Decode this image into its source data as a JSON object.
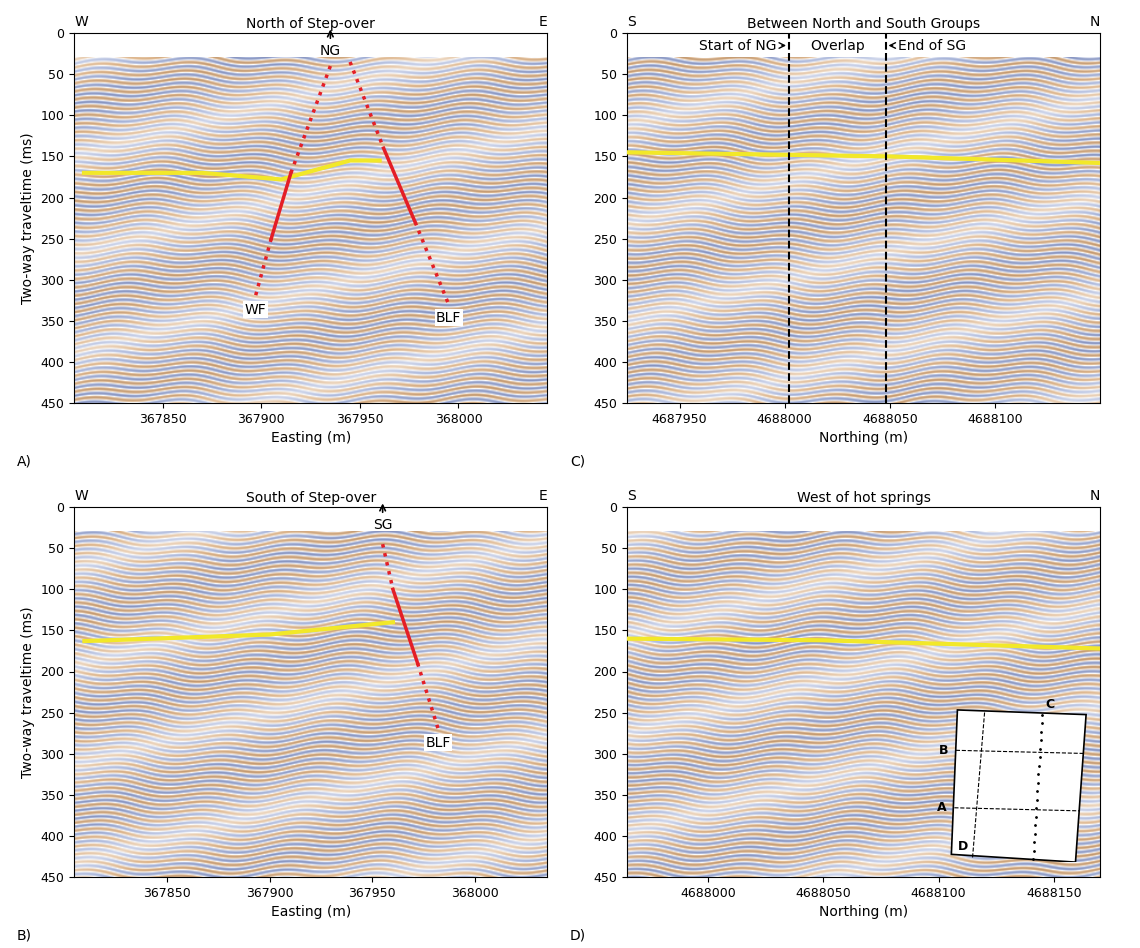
{
  "chart_data": [
    {
      "type": "line",
      "panel": "A)",
      "title": "North of Step-over",
      "left_dir": "W",
      "right_dir": "E",
      "xlabel": "Easting (m)",
      "ylabel": "Two-way traveltime (ms)",
      "xlim": [
        367805,
        368045
      ],
      "xticks": [
        367850,
        367900,
        367950,
        368000
      ],
      "ylim": [
        450,
        0
      ],
      "yticks": [
        0,
        50,
        100,
        150,
        200,
        250,
        300,
        350,
        400,
        450
      ],
      "top_label": {
        "text": "NG",
        "x": 367935
      },
      "horizon": {
        "color": "#f2e829",
        "x": [
          367810,
          367870,
          367910,
          367945,
          367960
        ],
        "y": [
          170,
          170,
          178,
          155,
          155
        ]
      },
      "faults": [
        {
          "label": "WF",
          "color": "#e41e26",
          "segments": [
            {
              "line_style": "dotted",
              "x": [
                367935,
                367915
              ],
              "y": [
                40,
                170
              ]
            },
            {
              "line_style": "solid",
              "x": [
                367915,
                367905
              ],
              "y": [
                170,
                250
              ]
            },
            {
              "line_style": "dotted",
              "x": [
                367905,
                367897
              ],
              "y": [
                250,
                320
              ]
            }
          ]
        },
        {
          "label": "BLF",
          "color": "#e41e26",
          "segments": [
            {
              "line_style": "dotted",
              "x": [
                367945,
                367962
              ],
              "y": [
                35,
                140
              ]
            },
            {
              "line_style": "solid",
              "x": [
                367962,
                367978
              ],
              "y": [
                140,
                230
              ]
            },
            {
              "line_style": "dotted",
              "x": [
                367978,
                367995
              ],
              "y": [
                230,
                330
              ]
            }
          ]
        }
      ]
    },
    {
      "type": "line",
      "panel": "C)",
      "title": "Between North and South Groups",
      "left_dir": "S",
      "right_dir": "N",
      "xlabel": "Northing (m)",
      "xlim": [
        4687925,
        4688150
      ],
      "xticks": [
        4687950,
        4688000,
        4688050,
        4688100
      ],
      "ylim": [
        450,
        0
      ],
      "yticks": [
        0,
        50,
        100,
        150,
        200,
        250,
        300,
        350,
        400,
        450
      ],
      "horizon": {
        "color": "#f2e829",
        "x": [
          4687925,
          4688050,
          4688150
        ],
        "y": [
          145,
          150,
          158
        ]
      },
      "markers": [
        {
          "x": 4688002,
          "label": "Start of NG"
        },
        {
          "x": 4688048,
          "label": "End of SG"
        }
      ],
      "middle_label": "Overlap"
    },
    {
      "type": "line",
      "panel": "B)",
      "title": "South of Step-over",
      "left_dir": "W",
      "right_dir": "E",
      "xlabel": "Easting (m)",
      "ylabel": "Two-way traveltime (ms)",
      "xlim": [
        367805,
        368035
      ],
      "xticks": [
        367850,
        367900,
        367950,
        368000
      ],
      "ylim": [
        450,
        0
      ],
      "yticks": [
        0,
        50,
        100,
        150,
        200,
        250,
        300,
        350,
        400,
        450
      ],
      "top_label": {
        "text": "SG",
        "x": 367955
      },
      "horizon": {
        "color": "#f2e829",
        "x": [
          367810,
          367900,
          367960
        ],
        "y": [
          163,
          155,
          140
        ]
      },
      "faults": [
        {
          "label": "BLF",
          "color": "#e41e26",
          "segments": [
            {
              "line_style": "dotted",
              "x": [
                367955,
                367960
              ],
              "y": [
                45,
                100
              ]
            },
            {
              "line_style": "solid",
              "x": [
                367960,
                367972
              ],
              "y": [
                100,
                190
              ]
            },
            {
              "line_style": "dotted",
              "x": [
                367972,
                367982
              ],
              "y": [
                190,
                270
              ]
            }
          ]
        }
      ]
    },
    {
      "type": "line",
      "panel": "D)",
      "title": "West of hot springs",
      "left_dir": "S",
      "right_dir": "N",
      "xlabel": "Northing (m)",
      "xlim": [
        4687965,
        4688170
      ],
      "xticks": [
        4688000,
        4688050,
        4688100,
        4688150
      ],
      "ylim": [
        450,
        0
      ],
      "yticks": [
        0,
        50,
        100,
        150,
        200,
        250,
        300,
        350,
        400,
        450
      ],
      "horizon": {
        "color": "#f2e829",
        "x": [
          4687965,
          4688050,
          4688170
        ],
        "y": [
          160,
          162,
          172
        ]
      },
      "inset_labels": [
        "A",
        "B",
        "C",
        "D"
      ]
    }
  ]
}
